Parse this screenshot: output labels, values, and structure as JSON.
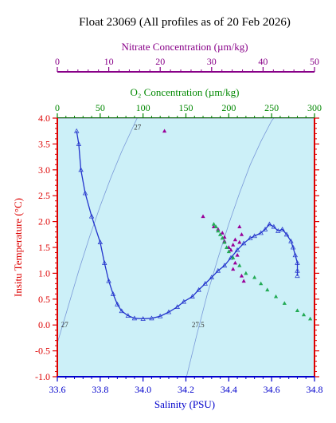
{
  "chart_data": {
    "type": "scatter",
    "title": "Float 23069  (All profiles as of 20 Feb 2026)",
    "xlabel": "Salinity (PSU)",
    "ylabel": "Insitu Temperature (°C)",
    "xlim": [
      33.6,
      34.8
    ],
    "ylim": [
      -1.0,
      4.0
    ],
    "x_ticks": [
      "33.6",
      "33.8",
      "34.0",
      "34.2",
      "34.4",
      "34.6",
      "34.8"
    ],
    "y_ticks": [
      "-1.0",
      "-0.5",
      "0.0",
      "0.5",
      "1.0",
      "1.5",
      "2.0",
      "2.5",
      "3.0",
      "3.5",
      "4.0"
    ],
    "grid": false,
    "background_color": "#ccf0f8",
    "top_axes": [
      {
        "label": "Nitrate Concentration (µm/kg)",
        "range": [
          0,
          50
        ],
        "ticks": [
          "0",
          "10",
          "20",
          "30",
          "40",
          "50"
        ],
        "color": "#880088"
      },
      {
        "label": "O₂ Concentration (µm/kg)",
        "range": [
          0,
          300
        ],
        "ticks": [
          "0",
          "50",
          "100",
          "150",
          "200",
          "250",
          "300"
        ],
        "color": "#008800"
      }
    ],
    "density_contours": [
      {
        "label": "27",
        "color": "#7a99d8",
        "x": [
          33.6,
          33.65,
          33.7,
          33.75,
          33.8,
          33.85,
          33.9,
          33.95,
          34.0
        ],
        "y": [
          -0.35,
          0.35,
          1.05,
          1.7,
          2.3,
          2.85,
          3.35,
          3.8,
          4.25
        ]
      },
      {
        "label": "27.5",
        "color": "#7a99d8",
        "x": [
          34.2,
          34.25,
          34.3,
          34.35,
          34.4,
          34.45,
          34.5,
          34.55,
          34.6,
          34.65
        ],
        "y": [
          -1.05,
          -0.2,
          0.6,
          1.3,
          1.95,
          2.55,
          3.1,
          3.55,
          3.95,
          4.2
        ]
      }
    ],
    "contour_labels": [
      "27",
      "27",
      "27.5"
    ],
    "series": [
      {
        "color": "#2233cc",
        "marker": "triangle",
        "x": [
          33.69,
          33.7,
          33.71,
          33.73,
          33.76,
          33.8,
          33.82,
          33.84,
          33.86,
          33.88,
          33.9,
          33.93,
          33.96,
          34.0,
          34.04,
          34.08,
          34.12,
          34.16,
          34.19,
          34.23,
          34.26,
          34.29,
          34.32,
          34.35,
          34.38,
          34.41,
          34.44,
          34.47,
          34.5,
          34.52,
          34.55,
          34.57,
          34.59,
          34.61,
          34.63,
          34.65,
          34.67,
          34.69,
          34.7,
          34.71,
          34.72,
          34.72,
          34.72
        ],
        "y": [
          3.75,
          3.5,
          3.0,
          2.55,
          2.1,
          1.6,
          1.2,
          0.85,
          0.6,
          0.4,
          0.27,
          0.18,
          0.13,
          0.12,
          0.13,
          0.17,
          0.25,
          0.35,
          0.45,
          0.55,
          0.68,
          0.8,
          0.92,
          1.05,
          1.15,
          1.3,
          1.45,
          1.58,
          1.68,
          1.72,
          1.78,
          1.85,
          1.95,
          1.9,
          1.82,
          1.85,
          1.75,
          1.62,
          1.5,
          1.35,
          1.2,
          1.05,
          0.95
        ]
      },
      {
        "color": "#990099",
        "marker": "triangle",
        "x": [
          34.1,
          34.28,
          34.33,
          34.35,
          34.37,
          34.38,
          34.38,
          34.4,
          34.41,
          34.42,
          34.43,
          34.45,
          34.46,
          34.45,
          34.44,
          34.43,
          34.42,
          34.46,
          34.47
        ],
        "y": [
          3.75,
          2.1,
          1.9,
          1.85,
          1.78,
          1.7,
          1.62,
          1.5,
          1.45,
          1.55,
          1.65,
          1.9,
          1.75,
          1.6,
          1.35,
          1.2,
          1.08,
          0.95,
          0.85
        ]
      },
      {
        "color": "#22aa55",
        "marker": "triangle",
        "x": [
          34.33,
          34.34,
          34.35,
          34.36,
          34.37,
          34.38,
          34.39,
          34.4,
          34.42,
          34.45,
          34.48,
          34.52,
          34.55,
          34.58,
          34.62,
          34.66,
          34.72,
          34.75,
          34.78
        ],
        "y": [
          1.95,
          1.9,
          1.82,
          1.75,
          1.68,
          1.6,
          1.5,
          1.42,
          1.3,
          1.15,
          1.0,
          0.92,
          0.8,
          0.68,
          0.55,
          0.42,
          0.28,
          0.2,
          0.12
        ]
      }
    ]
  }
}
